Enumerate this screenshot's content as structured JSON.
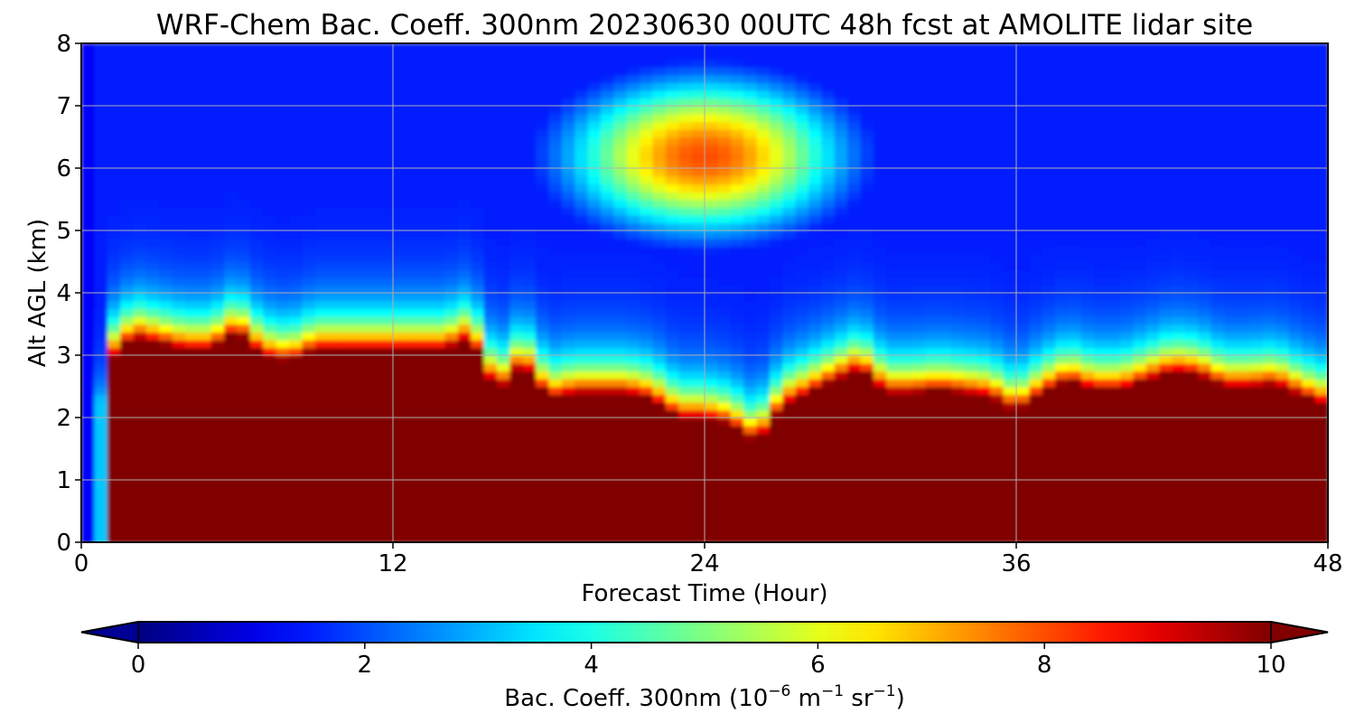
{
  "chart_data": {
    "type": "heatmap",
    "title": "WRF-Chem Bac. Coeff. 300nm  20230630 00UTC 48h fcst at AMOLITE lidar site",
    "xlabel": "Forecast Time (Hour)",
    "ylabel": "Alt AGL (km)",
    "xlim": [
      0,
      48
    ],
    "ylim": [
      0,
      8
    ],
    "xticks": [
      0,
      12,
      24,
      36,
      48
    ],
    "yticks": [
      0,
      1,
      2,
      3,
      4,
      5,
      6,
      7,
      8
    ],
    "grid": true,
    "colormap": "jet",
    "colorbar": {
      "orientation": "horizontal",
      "position": "bottom",
      "extend": "both",
      "range": [
        0,
        10
      ],
      "ticks": [
        0,
        2,
        4,
        6,
        8,
        10
      ],
      "label": {
        "prefix": "Bac. Coeff. 300nm  (10",
        "exp1": "−6",
        "mid": " m",
        "exp2": "−1",
        "mid2": " sr",
        "exp3": "−1",
        "suffix": ")"
      }
    },
    "x": [
      0,
      0.5,
      1,
      2,
      3,
      4,
      5,
      6,
      7,
      8,
      9,
      10,
      11,
      12,
      13,
      14,
      15,
      16,
      17,
      18,
      19,
      20,
      21,
      22,
      23,
      24,
      25,
      26,
      27,
      28,
      29,
      30,
      31,
      32,
      33,
      34,
      35,
      36,
      37,
      38,
      39,
      40,
      41,
      42,
      43,
      44,
      45,
      46,
      47,
      48
    ],
    "y": [
      0,
      0.5,
      1,
      1.5,
      2,
      2.5,
      3,
      3.5,
      4,
      4.5,
      5,
      5.5,
      6,
      6.5,
      7,
      7.5,
      8
    ],
    "saturation_top_km": [
      0,
      0.2,
      2.9,
      3.3,
      3.2,
      3.1,
      3.1,
      3.4,
      3.0,
      2.9,
      3.1,
      3.1,
      3.1,
      3.1,
      3.1,
      3.1,
      3.3,
      2.4,
      2.9,
      2.3,
      2.4,
      2.4,
      2.4,
      2.3,
      2.0,
      2.0,
      1.9,
      1.6,
      2.2,
      2.4,
      2.6,
      2.8,
      2.4,
      2.4,
      2.45,
      2.4,
      2.35,
      2.1,
      2.4,
      2.6,
      2.45,
      2.45,
      2.6,
      2.75,
      2.7,
      2.5,
      2.5,
      2.55,
      2.35,
      2.2
    ],
    "aerosol_layer": {
      "description": "elevated plume with peak values near 8 at 5.5-7 km between hours 19-29",
      "center_hour": 24,
      "center_km": 6.2,
      "peak_value": 8
    },
    "upper_background_value": 1.5,
    "near_surface_low_value": 0.2
  }
}
